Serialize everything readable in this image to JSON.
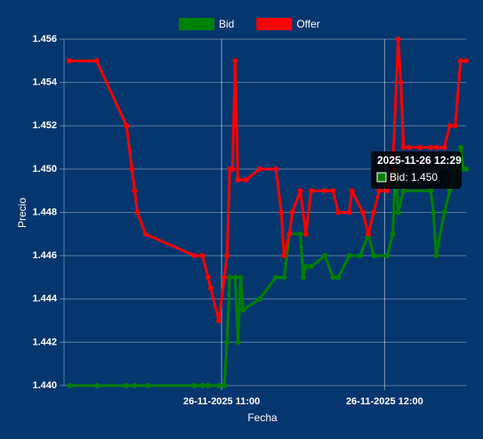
{
  "chart_data": {
    "type": "line",
    "x_label": "Fecha",
    "y_label": "Precio",
    "xlim": [
      "26-11-2025 10:02",
      "26-11-2025 12:30"
    ],
    "xticks": [
      "26-11-2025 11:00",
      "26-11-2025 12:00"
    ],
    "ylim": [
      1.44,
      1.456
    ],
    "yticks": [
      {
        "value": 1.44,
        "label": "1.440"
      },
      1.442,
      1.444,
      1.446,
      1.448,
      {
        "value": 1.45,
        "label": "1.450"
      },
      1.452,
      1.454,
      1.456
    ],
    "grid": true,
    "legend": "top",
    "series": [
      {
        "name": "Bid",
        "color": "#008000",
        "x": [
          "26-11-2025 10:04",
          "26-11-2025 10:14",
          "26-11-2025 10:25",
          "26-11-2025 10:28",
          "26-11-2025 10:33",
          "26-11-2025 10:50",
          "26-11-2025 10:53",
          "26-11-2025 10:55",
          "26-11-2025 10:59",
          "26-11-2025 11:01",
          "26-11-2025 11:02",
          "26-11-2025 11:03",
          "26-11-2025 11:05",
          "26-11-2025 11:06",
          "26-11-2025 11:07",
          "26-11-2025 11:08",
          "26-11-2025 11:14",
          "26-11-2025 11:20",
          "26-11-2025 11:23",
          "26-11-2025 11:25",
          "26-11-2025 11:29",
          "26-11-2025 11:30",
          "26-11-2025 11:31",
          "26-11-2025 11:33",
          "26-11-2025 11:38",
          "26-11-2025 11:41",
          "26-11-2025 11:43",
          "26-11-2025 11:47",
          "26-11-2025 11:51",
          "26-11-2025 11:54",
          "26-11-2025 11:56",
          "26-11-2025 12:01",
          "26-11-2025 12:03",
          "26-11-2025 12:04",
          "26-11-2025 12:05",
          "26-11-2025 12:07",
          "26-11-2025 12:17",
          "26-11-2025 12:18",
          "26-11-2025 12:19",
          "26-11-2025 12:22",
          "26-11-2025 12:24",
          "26-11-2025 12:28",
          "26-11-2025 12:29",
          "26-11-2025 12:30"
        ],
        "values": [
          1.44,
          1.44,
          1.44,
          1.44,
          1.44,
          1.44,
          1.44,
          1.44,
          1.44,
          1.44,
          1.442,
          1.445,
          1.445,
          1.442,
          1.445,
          1.4435,
          1.444,
          1.445,
          1.445,
          1.447,
          1.447,
          1.445,
          1.4455,
          1.4455,
          1.446,
          1.445,
          1.445,
          1.446,
          1.446,
          1.447,
          1.446,
          1.446,
          1.447,
          1.45,
          1.448,
          1.449,
          1.449,
          1.448,
          1.446,
          1.448,
          1.449,
          1.451,
          1.45,
          1.45
        ]
      },
      {
        "name": "Offer",
        "color": "#ff0000",
        "x": [
          "26-11-2025 10:04",
          "26-11-2025 10:14",
          "26-11-2025 10:25",
          "26-11-2025 10:27",
          "26-11-2025 10:28",
          "26-11-2025 10:29",
          "26-11-2025 10:32",
          "26-11-2025 10:50",
          "26-11-2025 10:53",
          "26-11-2025 10:55",
          "26-11-2025 10:56",
          "26-11-2025 10:59",
          "26-11-2025 11:01",
          "26-11-2025 11:02",
          "26-11-2025 11:03",
          "26-11-2025 11:04",
          "26-11-2025 11:05",
          "26-11-2025 11:06",
          "26-11-2025 11:09",
          "26-11-2025 11:14",
          "26-11-2025 11:20",
          "26-11-2025 11:22",
          "26-11-2025 11:23",
          "26-11-2025 11:25",
          "26-11-2025 11:26",
          "26-11-2025 11:29",
          "26-11-2025 11:31",
          "26-11-2025 11:33",
          "26-11-2025 11:38",
          "26-11-2025 11:41",
          "26-11-2025 11:43",
          "26-11-2025 11:47",
          "26-11-2025 11:48",
          "26-11-2025 11:52",
          "26-11-2025 11:54",
          "26-11-2025 11:56",
          "26-11-2025 11:58",
          "26-11-2025 12:01",
          "26-11-2025 12:03",
          "26-11-2025 12:05",
          "26-11-2025 12:06",
          "26-11-2025 12:07",
          "26-11-2025 12:09",
          "26-11-2025 12:13",
          "26-11-2025 12:17",
          "26-11-2025 12:19",
          "26-11-2025 12:22",
          "26-11-2025 12:24",
          "26-11-2025 12:26",
          "26-11-2025 12:28",
          "26-11-2025 12:30"
        ],
        "values": [
          1.455,
          1.455,
          1.452,
          1.45,
          1.449,
          1.448,
          1.447,
          1.446,
          1.446,
          1.445,
          1.4445,
          1.443,
          1.445,
          1.446,
          1.45,
          1.45,
          1.455,
          1.4495,
          1.4495,
          1.45,
          1.45,
          1.448,
          1.446,
          1.447,
          1.448,
          1.449,
          1.447,
          1.449,
          1.449,
          1.449,
          1.448,
          1.448,
          1.449,
          1.448,
          1.447,
          1.448,
          1.449,
          1.449,
          1.45,
          1.456,
          1.454,
          1.451,
          1.451,
          1.451,
          1.451,
          1.451,
          1.451,
          1.452,
          1.452,
          1.455,
          1.455
        ]
      }
    ],
    "tooltip": {
      "title": "2025-11-26 12:29",
      "label": "Bid: 1.450"
    }
  }
}
